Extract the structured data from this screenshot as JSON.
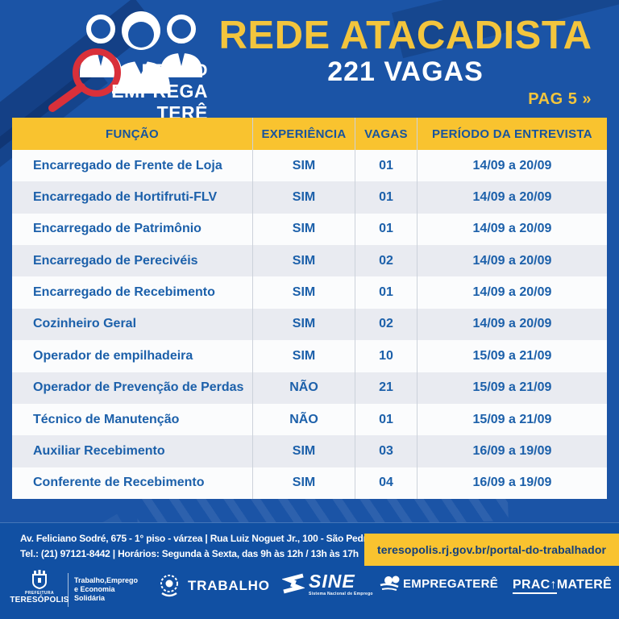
{
  "header": {
    "brand_line1": "FEIRÃO",
    "brand_line2": "EMPREGA TERÊ",
    "title": "REDE ATACADISTA",
    "subtitle": "221 VAGAS",
    "page_label": "PAG 5 »"
  },
  "table": {
    "columns": [
      "FUNÇÃO",
      "EXPERIÊNCIA",
      "VAGAS",
      "PERÍODO DA ENTREVISTA"
    ],
    "rows": [
      [
        "Encarregado de Frente de Loja",
        "SIM",
        "01",
        "14/09 a 20/09"
      ],
      [
        "Encarregado de Hortifruti-FLV",
        "SIM",
        "01",
        "14/09 a 20/09"
      ],
      [
        "Encarregado de Patrimônio",
        "SIM",
        "01",
        "14/09 a 20/09"
      ],
      [
        "Encarregado de Perecivéis",
        "SIM",
        "02",
        "14/09 a 20/09"
      ],
      [
        "Encarregado de Recebimento",
        "SIM",
        "01",
        "14/09 a 20/09"
      ],
      [
        "Cozinheiro Geral",
        "SIM",
        "02",
        "14/09 a 20/09"
      ],
      [
        "Operador de empilhadeira",
        "SIM",
        "10",
        "15/09 a 21/09"
      ],
      [
        "Operador de Prevenção de Perdas",
        "NÃO",
        "21",
        "15/09 a 21/09"
      ],
      [
        "Técnico de Manutenção",
        "NÃO",
        "01",
        "15/09 a 21/09"
      ],
      [
        "Auxiliar Recebimento",
        "SIM",
        "03",
        "16/09 a 19/09"
      ],
      [
        "Conferente de Recebimento",
        "SIM",
        "04",
        "16/09 a 19/09"
      ]
    ]
  },
  "footer": {
    "address_line1": "Av. Feliciano Sodré, 675 - 1° piso - várzea | Rua Luiz Noguet Jr., 100 - São Pedro",
    "address_line2": "Tel.: (21) 97121-8442 | Horários: Segunda à Sexta, das 9h às 12h / 13h às 17h",
    "url": "teresopolis.rj.gov.br/portal-do-trabalhador"
  },
  "logos": {
    "prefeitura_small": "PREFEITURA",
    "prefeitura_name": "TERESÓPOLIS",
    "secretaria_line1": "Trabalho,Emprego",
    "secretaria_line2": "e Economia",
    "secretaria_line3": "Solidária",
    "trabalho_label": "TRABALHO",
    "sine_label": "SINE",
    "sine_sub": "Sistema Nacional de Emprego",
    "empregatere_label": "EMPREGATERÊ",
    "pracimatere_prefix": "PRAC",
    "pracimatere_arrow": "↑",
    "pracimatere_suffix": "MATERÊ"
  },
  "colors": {
    "background": "#1b54a6",
    "accent_yellow": "#f9c32f",
    "magnifier_red": "#d9303a",
    "table_text": "#1c60aa",
    "url_text": "#123f7d"
  }
}
